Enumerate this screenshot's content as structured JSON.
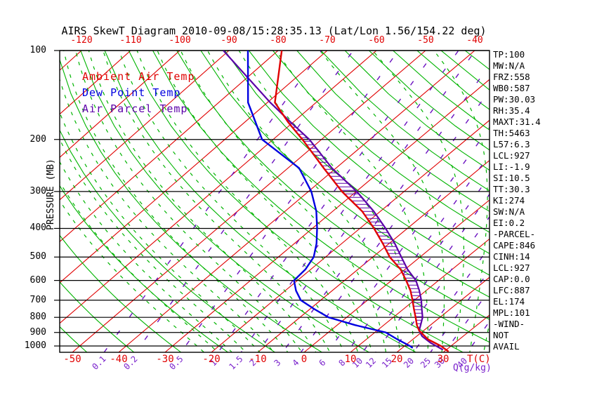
{
  "title": "AIRS SkewT Diagram 2010-09-08/15:28:35.13 (Lat/Lon 1.56/154.22 deg)",
  "colors": {
    "ambient": "#e00000",
    "dewpoint": "#0000e0",
    "parcel": "#5b00a8",
    "isotherm": "#e00000",
    "adiabat": "#00b400",
    "mixing": "#6a10c0",
    "grid": "#000000"
  },
  "legend": {
    "ambient_label": "Ambient Air Temp",
    "dewpoint_label": "Dew Point Temp",
    "parcel_label": "Air Parcel Temp"
  },
  "axes": {
    "pressure": {
      "label": "PRESSURE (MB)",
      "ticks": [
        100,
        200,
        300,
        400,
        500,
        600,
        700,
        800,
        900,
        1000
      ],
      "range": [
        100,
        1050
      ],
      "scale": "log"
    },
    "temp_top": {
      "ticks": [
        -120,
        -110,
        -100,
        -90,
        -80,
        -70,
        -60,
        -50,
        -40
      ]
    },
    "temp_bottom": {
      "ticks": [
        -50,
        -40,
        -30,
        -20,
        -10,
        0,
        10,
        20,
        30
      ],
      "unit_label": "T(C)"
    },
    "mixing_ratio": {
      "unit_label": "Q(g/kg)",
      "values": [
        0.1,
        0.2,
        0.5,
        1,
        1.5,
        2,
        3,
        4,
        6,
        8,
        10,
        12,
        15,
        20,
        25,
        30,
        40
      ]
    }
  },
  "stats": [
    "TP:100",
    "MW:N/A",
    "FRZ:558",
    "WB0:587",
    "PW:30.03",
    "RH:35.4",
    "MAXT:31.4",
    "TH:5463",
    "L57:6.3",
    "LCL:927",
    "LI:-1.9",
    "SI:10.5",
    "TT:30.3",
    "KI:274",
    "SW:N/A",
    "EI:0.2",
    "-PARCEL-",
    "CAPE:846",
    "CINH:14",
    "LCL:927",
    "CAP:0.0",
    "LFC:887",
    "EL:174",
    "MPL:101",
    "-WIND-",
    "NOT",
    "AVAIL"
  ],
  "chart_data": {
    "type": "line",
    "variant": "skew-t-log-p",
    "title": "AIRS SkewT Diagram 2010-09-08/15:28:35.13 (Lat/Lon 1.56/154.22 deg)",
    "xlabel": "T(C)",
    "ylabel": "PRESSURE (MB)",
    "x_range_bottom_C": [
      -50,
      35
    ],
    "y_range_mb": [
      100,
      1050
    ],
    "grid": "skew-t background: isotherms every 10C, dry adiabats every 10K, moist adiabats dashed, mixing-ratio lines dashed",
    "legend_position": "upper-left",
    "cape_hatch_between_mb": {
      "from_mb": 174,
      "to_mb": 887
    },
    "series": [
      {
        "name": "Ambient Air Temp",
        "color_key": "ambient",
        "points_mb_C": [
          [
            100,
            -83
          ],
          [
            150,
            -71
          ],
          [
            175,
            -63
          ],
          [
            200,
            -55.5
          ],
          [
            250,
            -43.5
          ],
          [
            300,
            -33.5
          ],
          [
            350,
            -24
          ],
          [
            400,
            -17
          ],
          [
            450,
            -11.2
          ],
          [
            500,
            -6.2
          ],
          [
            550,
            -0.7
          ],
          [
            600,
            3.4
          ],
          [
            650,
            7
          ],
          [
            700,
            9.9
          ],
          [
            750,
            12.5
          ],
          [
            800,
            15
          ],
          [
            850,
            17.3
          ],
          [
            887,
            19.2
          ],
          [
            950,
            23.4
          ],
          [
            1000,
            27.9
          ],
          [
            1045,
            31
          ]
        ]
      },
      {
        "name": "Dew Point Temp",
        "color_key": "dewpoint",
        "points_mb_C": [
          [
            100,
            -90.3
          ],
          [
            150,
            -76.8
          ],
          [
            200,
            -64.2
          ],
          [
            250,
            -48.8
          ],
          [
            300,
            -40.1
          ],
          [
            350,
            -33.9
          ],
          [
            400,
            -29.3
          ],
          [
            450,
            -25.5
          ],
          [
            500,
            -22.6
          ],
          [
            550,
            -21.2
          ],
          [
            600,
            -20.8
          ],
          [
            650,
            -17.7
          ],
          [
            700,
            -14.2
          ],
          [
            750,
            -9
          ],
          [
            800,
            -3.8
          ],
          [
            850,
            4
          ],
          [
            900,
            12.5
          ],
          [
            950,
            16.8
          ],
          [
            1000,
            21.2
          ],
          [
            1015,
            22.3
          ]
        ]
      },
      {
        "name": "Air Parcel Temp",
        "color_key": "parcel",
        "points_mb_C": [
          [
            100,
            -95.6
          ],
          [
            150,
            -72
          ],
          [
            174,
            -62.8
          ],
          [
            200,
            -54
          ],
          [
            250,
            -41.7
          ],
          [
            300,
            -30.3
          ],
          [
            350,
            -21.5
          ],
          [
            400,
            -14.5
          ],
          [
            450,
            -8.6
          ],
          [
            500,
            -3.7
          ],
          [
            550,
            0.8
          ],
          [
            600,
            5.5
          ],
          [
            650,
            8.9
          ],
          [
            700,
            11.8
          ],
          [
            750,
            14.2
          ],
          [
            800,
            16.5
          ],
          [
            850,
            18.1
          ],
          [
            887,
            19.2
          ],
          [
            927,
            21.3
          ],
          [
            975,
            24.8
          ],
          [
            1030,
            29.3
          ]
        ]
      }
    ]
  }
}
